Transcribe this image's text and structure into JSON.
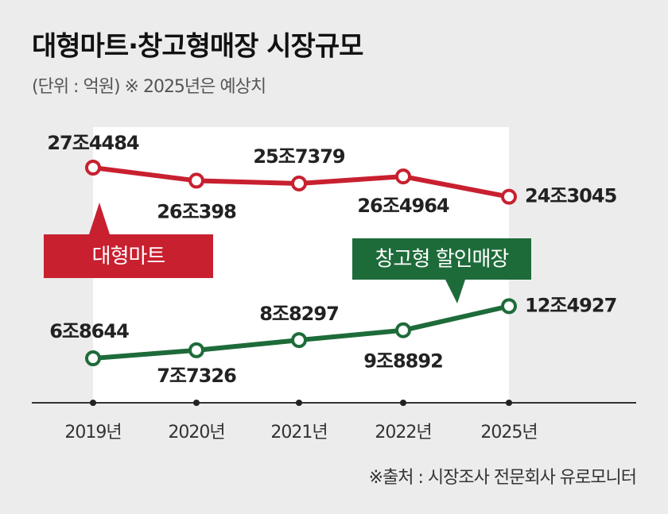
{
  "chart_data": {
    "type": "line",
    "title": "대형마트·창고형매장 시장규모",
    "subtitle": "(단위 : 억원) ※ 2025년은 예상치",
    "source": "※출처 : 시장조사 전문회사 유로모니터",
    "categories": [
      "2019년",
      "2020년",
      "2021년",
      "2022년",
      "2025년"
    ],
    "series": [
      {
        "name": "대형마트",
        "color": "#c8202f",
        "values": [
          274484,
          260398,
          257379,
          264964,
          243045
        ],
        "value_labels": [
          "27조4484",
          "26조398",
          "25조7379",
          "26조4964",
          "24조3045"
        ]
      },
      {
        "name": "창고형 할인매장",
        "color": "#1e6b3a",
        "values": [
          68644,
          77326,
          88297,
          98892,
          124927
        ],
        "value_labels": [
          "6조8644",
          "7조7326",
          "8조8297",
          "9조8892",
          "12조4927"
        ]
      }
    ]
  }
}
